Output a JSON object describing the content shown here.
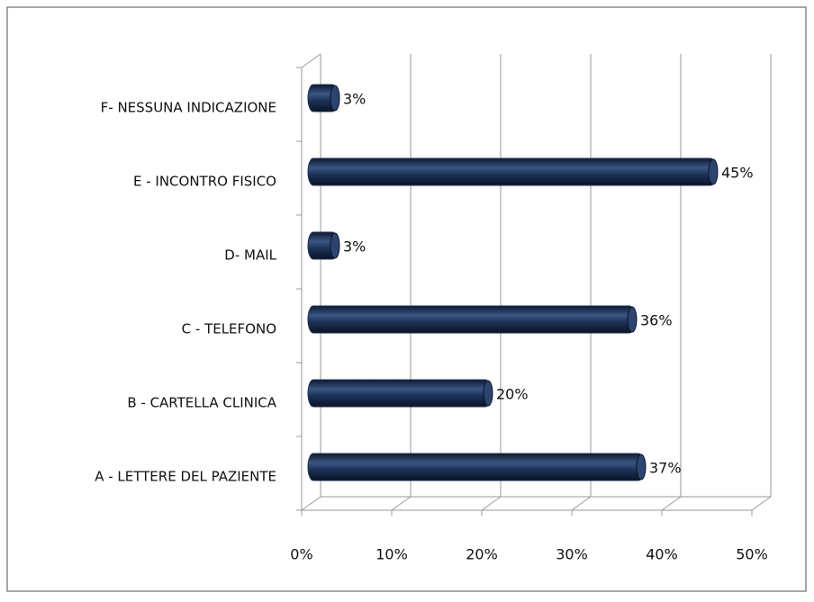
{
  "chart_data": {
    "type": "bar",
    "orientation": "horizontal",
    "categories": [
      "A - LETTERE DEL PAZIENTE",
      "B - CARTELLA CLINICA",
      "C - TELEFONO",
      "D- MAIL",
      "E - INCONTRO FISICO",
      "F- NESSUNA INDICAZIONE"
    ],
    "values": [
      37,
      20,
      36,
      3,
      45,
      3
    ],
    "value_labels": [
      "37%",
      "20%",
      "36%",
      "3%",
      "45%",
      "3%"
    ],
    "color": "#1c3257",
    "xlim": [
      0,
      50
    ],
    "xticks": [
      {
        "value": 0,
        "label": "0%"
      },
      {
        "value": 10,
        "label": "10%"
      },
      {
        "value": 20,
        "label": "20%"
      },
      {
        "value": 30,
        "label": "30%"
      },
      {
        "value": 40,
        "label": "40%"
      },
      {
        "value": 50,
        "label": "50%"
      }
    ],
    "grid": true
  }
}
